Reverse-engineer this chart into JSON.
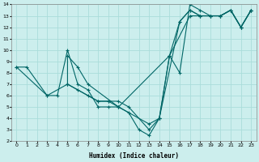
{
  "xlabel": "Humidex (Indice chaleur)",
  "bg_color": "#cceeed",
  "grid_color": "#aaddda",
  "line_color": "#006666",
  "xlim": [
    -0.5,
    23.5
  ],
  "ylim": [
    2,
    14
  ],
  "xtick_labels": [
    "0",
    "1",
    "2",
    "3",
    "4",
    "5",
    "6",
    "7",
    "8",
    "9",
    "10",
    "11",
    "12",
    "13",
    "14",
    "15",
    "16",
    "17",
    "18",
    "19",
    "20",
    "21",
    "22",
    "23"
  ],
  "xtick_vals": [
    0,
    1,
    2,
    3,
    4,
    5,
    6,
    7,
    8,
    9,
    10,
    11,
    12,
    13,
    14,
    15,
    16,
    17,
    18,
    19,
    20,
    21,
    22,
    23
  ],
  "ytick_vals": [
    2,
    3,
    4,
    5,
    6,
    7,
    8,
    9,
    10,
    11,
    12,
    13,
    14
  ],
  "series1": {
    "x": [
      0,
      1,
      3,
      4,
      5,
      6,
      7,
      8,
      9,
      10,
      11,
      12,
      13,
      14,
      15,
      16,
      17,
      18,
      19,
      20,
      21,
      22,
      23
    ],
    "y": [
      8.5,
      8.5,
      6.0,
      6.0,
      10.0,
      7.0,
      6.5,
      5.0,
      5.0,
      5.0,
      4.5,
      3.0,
      2.5,
      4.0,
      9.5,
      8.0,
      14.0,
      13.5,
      13.0,
      13.0,
      13.5,
      12.0,
      13.5
    ]
  },
  "series2": {
    "x": [
      0,
      3,
      5,
      5,
      6,
      7,
      10,
      13,
      14,
      16,
      17,
      18,
      19,
      20,
      21,
      22,
      23
    ],
    "y": [
      8.5,
      6.0,
      7.0,
      9.5,
      8.5,
      7.0,
      5.0,
      3.5,
      4.0,
      12.5,
      13.5,
      13.0,
      13.0,
      13.0,
      13.5,
      12.0,
      13.5
    ]
  },
  "series3": {
    "x": [
      5,
      6,
      7,
      8,
      9,
      10,
      11,
      13,
      14,
      15,
      16,
      17,
      18,
      19,
      20,
      21,
      22,
      23
    ],
    "y": [
      7.0,
      6.5,
      6.0,
      5.5,
      5.5,
      5.5,
      5.0,
      3.0,
      4.0,
      9.5,
      12.5,
      13.5,
      13.0,
      13.0,
      13.0,
      13.5,
      12.0,
      13.5
    ]
  },
  "series4": {
    "x": [
      5,
      8,
      9,
      10,
      15,
      17,
      18,
      19,
      20,
      21,
      22,
      23
    ],
    "y": [
      7.0,
      5.5,
      5.5,
      5.0,
      9.5,
      13.0,
      13.0,
      13.0,
      13.0,
      13.5,
      12.0,
      13.5
    ]
  }
}
